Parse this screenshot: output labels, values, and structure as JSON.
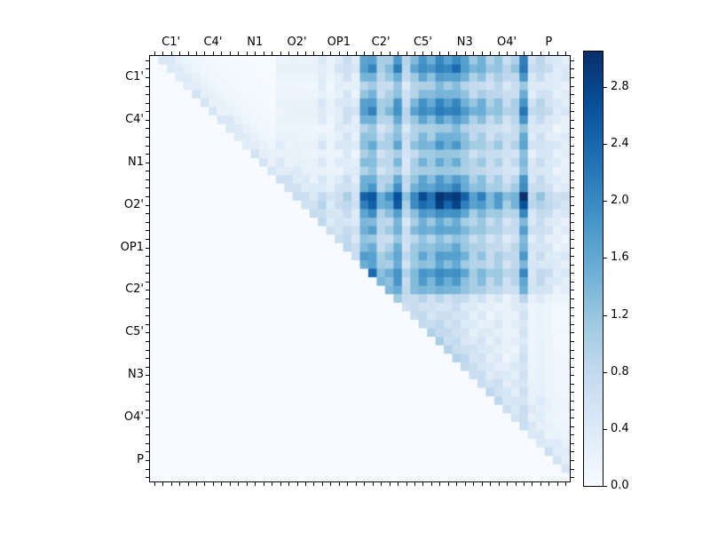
{
  "figure": {
    "background": "#ffffff",
    "title": ""
  },
  "chart_data": {
    "type": "heatmap",
    "title": "",
    "xlabel": "",
    "ylabel": "",
    "x_tick_labels": [
      "C1'",
      "C4'",
      "N1",
      "O2'",
      "OP1",
      "C2'",
      "C5'",
      "N3",
      "O4'",
      "P"
    ],
    "y_tick_labels": [
      "C1'",
      "C4'",
      "N1",
      "O2'",
      "OP1",
      "C2'",
      "C5'",
      "N3",
      "O4'",
      "P"
    ],
    "n_cells": 50,
    "cells_per_label": 5,
    "grid": false,
    "value_range": {
      "vmin": 0.0,
      "vmax": 3.05
    },
    "colorbar": {
      "position": "right",
      "tick_labels": [
        "0.0",
        "0.4",
        "0.8",
        "1.2",
        "1.6",
        "2.0",
        "2.4",
        "2.8"
      ],
      "tick_values": [
        0.0,
        0.4,
        0.8,
        1.2,
        1.6,
        2.0,
        2.4,
        2.8
      ]
    },
    "colormap": {
      "name": "Blues",
      "stops": [
        [
          0.0,
          "#f7fbff"
        ],
        [
          0.125,
          "#deebf7"
        ],
        [
          0.25,
          "#c6dbef"
        ],
        [
          0.375,
          "#9ecae1"
        ],
        [
          0.5,
          "#6baed6"
        ],
        [
          0.625,
          "#4292c6"
        ],
        [
          0.75,
          "#2171b5"
        ],
        [
          0.875,
          "#08519c"
        ],
        [
          1.0,
          "#08306b"
        ]
      ]
    },
    "matrix_model": {
      "description": "Upper-triangular heatmap (values only for column > row). Cell value = row_weight*col_weight*scale + near_diag_amp*exp(-(j-i-1)/near_diag_decay), capped at vmax. Weights estimated from stripe intensities in the figure.",
      "scale": 0.025,
      "near_diag_amp": 0.45,
      "near_diag_decay": 3,
      "noise_amp": 0.04,
      "row_weights": [
        8,
        9,
        7,
        5,
        6,
        8,
        9,
        7,
        5,
        6,
        7,
        5,
        6,
        5,
        7,
        8,
        12,
        11,
        8,
        6,
        7,
        5,
        6,
        7,
        6,
        8,
        7,
        6,
        3,
        2,
        2,
        2,
        2,
        2,
        2,
        2,
        2,
        2,
        2,
        2,
        2,
        2,
        1,
        1,
        1,
        1,
        1,
        1,
        0,
        0
      ],
      "col_weights": [
        0,
        0,
        0,
        0,
        0,
        0,
        0,
        0,
        0,
        0,
        0,
        0,
        0,
        0,
        0,
        1,
        1,
        1,
        1,
        1,
        2,
        1,
        2,
        3,
        2,
        8,
        9,
        5,
        6,
        9,
        4,
        7,
        9,
        8,
        10,
        9,
        10,
        8,
        6,
        7,
        5,
        6,
        4,
        5,
        10,
        3,
        4,
        3,
        2,
        2
      ]
    }
  }
}
